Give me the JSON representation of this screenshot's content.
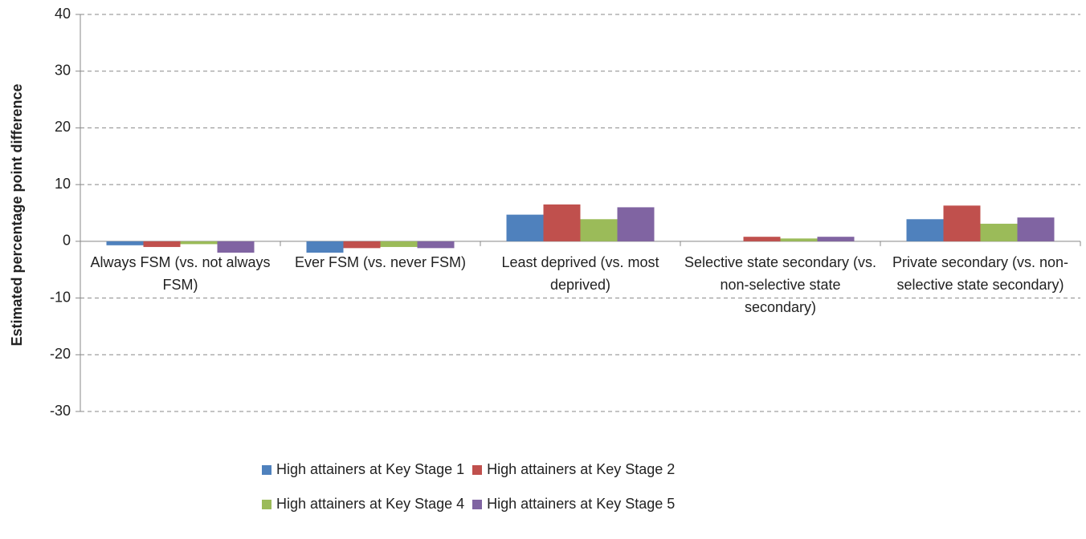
{
  "chart_data": {
    "type": "bar",
    "y_label": "Estimated percentage point difference",
    "categories": [
      "Always FSM (vs. not always FSM)",
      "Ever FSM (vs. never FSM)",
      "Least deprived (vs. most deprived)",
      "Selective state secondary (vs. non-selective state secondary)",
      "Private secondary (vs. non-selective state secondary)"
    ],
    "series": [
      {
        "name": "High attainers at Key Stage 1",
        "color": "#4f81bd",
        "values": [
          -0.7,
          -2.0,
          4.7,
          0,
          3.9
        ]
      },
      {
        "name": "High attainers at Key Stage 2",
        "color": "#c0504d",
        "values": [
          -1.0,
          -1.2,
          6.5,
          0.8,
          6.3
        ]
      },
      {
        "name": "High attainers at Key Stage 4",
        "color": "#9bbb59",
        "values": [
          -0.5,
          -1.0,
          3.9,
          0.5,
          3.1
        ]
      },
      {
        "name": "High attainers at Key Stage 5",
        "color": "#8064a2",
        "values": [
          -2.0,
          -1.2,
          6.0,
          0.8,
          4.2
        ]
      }
    ],
    "ylim": [
      -30,
      40
    ],
    "yticks": [
      -30,
      -20,
      -10,
      0,
      10,
      20,
      30,
      40
    ],
    "grid": true
  }
}
